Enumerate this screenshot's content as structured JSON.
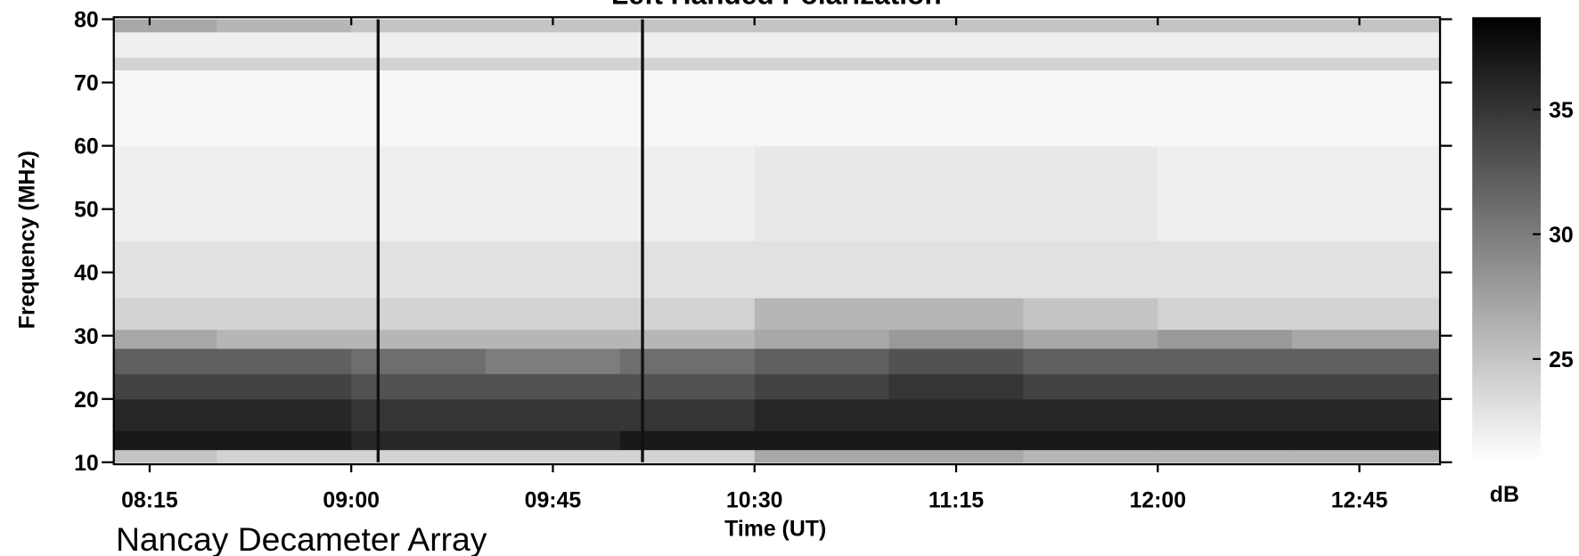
{
  "chart_data": {
    "type": "heatmap",
    "title": "Left Handed Polarization",
    "subtitle": "Nancay Decameter Array",
    "x_label": "Time (UT)",
    "y_label": "Frequency (MHz)",
    "colorbar_label": "dB",
    "x": [
      487,
      510,
      540,
      570,
      600,
      630,
      660,
      690,
      720,
      750,
      783
    ],
    "y": [
      10,
      12,
      15,
      20,
      24,
      28,
      31,
      36,
      45,
      60,
      72,
      74,
      78,
      80
    ],
    "values": [
      [
        25,
        24,
        24,
        24,
        24,
        27,
        27,
        26,
        26,
        26
      ],
      [
        37,
        37,
        36,
        36,
        37,
        37,
        37,
        37,
        37,
        37
      ],
      [
        36,
        36,
        35,
        35,
        35,
        36,
        36,
        36,
        36,
        36
      ],
      [
        34,
        34,
        33,
        33,
        33,
        34,
        35,
        34,
        34,
        34
      ],
      [
        32,
        32,
        31,
        30,
        31,
        32,
        33,
        32,
        32,
        32
      ],
      [
        27,
        26,
        26,
        26,
        26,
        27,
        28,
        27,
        28,
        27
      ],
      [
        24,
        24,
        24,
        24,
        24,
        26,
        26,
        25,
        24,
        24
      ],
      [
        23,
        23,
        23,
        23,
        23,
        23,
        23,
        23,
        23,
        23
      ],
      [
        22,
        22,
        22,
        22,
        22,
        22.5,
        22.5,
        22.5,
        22,
        22
      ],
      [
        21.5,
        21.5,
        21.5,
        21.5,
        21.5,
        21.5,
        21.5,
        21.5,
        21.5,
        21.5
      ],
      [
        24,
        24,
        24,
        24,
        24,
        24,
        24,
        24,
        24,
        24
      ],
      [
        22,
        22,
        22,
        22,
        22,
        22,
        22,
        22,
        22,
        22
      ],
      [
        27,
        26,
        25,
        25,
        25,
        25,
        25,
        25,
        25,
        25
      ]
    ],
    "vlines": [
      546,
      605
    ],
    "xlim": [
      487,
      783
    ],
    "ylim": [
      10,
      80
    ],
    "clim": [
      20.9,
      38.7
    ],
    "xticks": [
      {
        "value": 495,
        "label": "08:15"
      },
      {
        "value": 540,
        "label": "09:00"
      },
      {
        "value": 585,
        "label": "09:45"
      },
      {
        "value": 630,
        "label": "10:30"
      },
      {
        "value": 675,
        "label": "11:15"
      },
      {
        "value": 720,
        "label": "12:00"
      },
      {
        "value": 765,
        "label": "12:45"
      }
    ],
    "yticks": [
      10,
      20,
      30,
      40,
      50,
      60,
      70,
      80
    ],
    "cticks": [
      25,
      30,
      35
    ]
  }
}
